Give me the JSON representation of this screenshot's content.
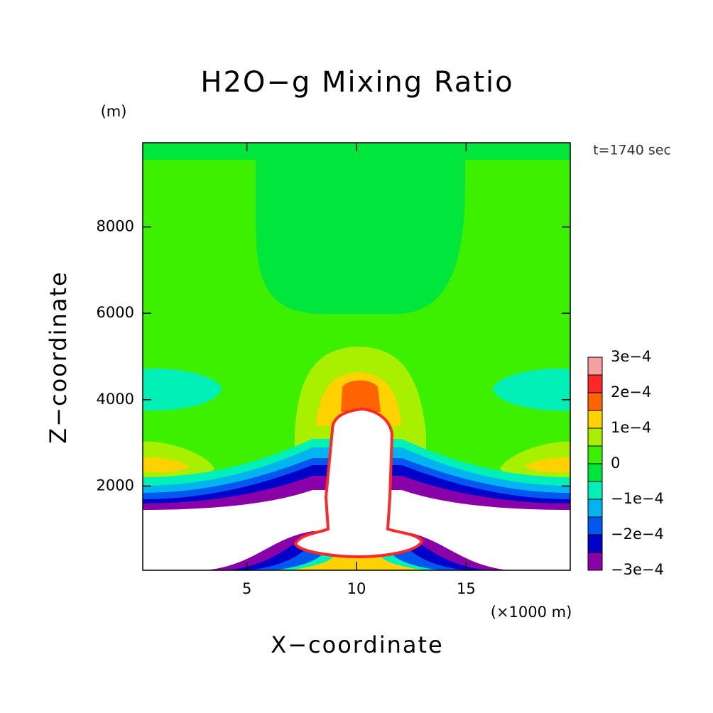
{
  "chart_data": {
    "type": "contour",
    "title": "H2O−g Mixing Ratio",
    "y_unit": "(m)",
    "x_unit": "(×1000 m)",
    "x_label": "X−coordinate",
    "y_label": "Z−coordinate",
    "annotation": "t=1740 sec",
    "xlim": [
      0.25,
      19.75
    ],
    "xticks": [
      5,
      10,
      15
    ],
    "ylim": [
      50,
      9950
    ],
    "yticks": [
      2000,
      4000,
      6000,
      8000
    ],
    "colorbar": {
      "levels": [
        -0.0003,
        -0.00025,
        -0.0002,
        -0.00015,
        -0.0001,
        -5e-05,
        0,
        5e-05,
        0.0001,
        0.00015,
        0.0002,
        0.00025,
        0.0003
      ],
      "colors": [
        "#8a00a8",
        "#0000c8",
        "#0058f0",
        "#00b4f0",
        "#00f0b8",
        "#00e63c",
        "#3cf000",
        "#a8f000",
        "#ffd200",
        "#ff6400",
        "#ff2828",
        "#f4a0a0"
      ],
      "ticks": [
        {
          "value": -0.0003,
          "label": "−3e−4"
        },
        {
          "value": -0.0002,
          "label": "−2e−4"
        },
        {
          "value": -0.0001,
          "label": "−1e−4"
        },
        0,
        {
          "value": 0.0001,
          "label": "1e−4"
        },
        {
          "value": 0.0002,
          "label": "2e−4"
        },
        {
          "value": 0.0003,
          "label": "3e−4"
        }
      ]
    }
  }
}
